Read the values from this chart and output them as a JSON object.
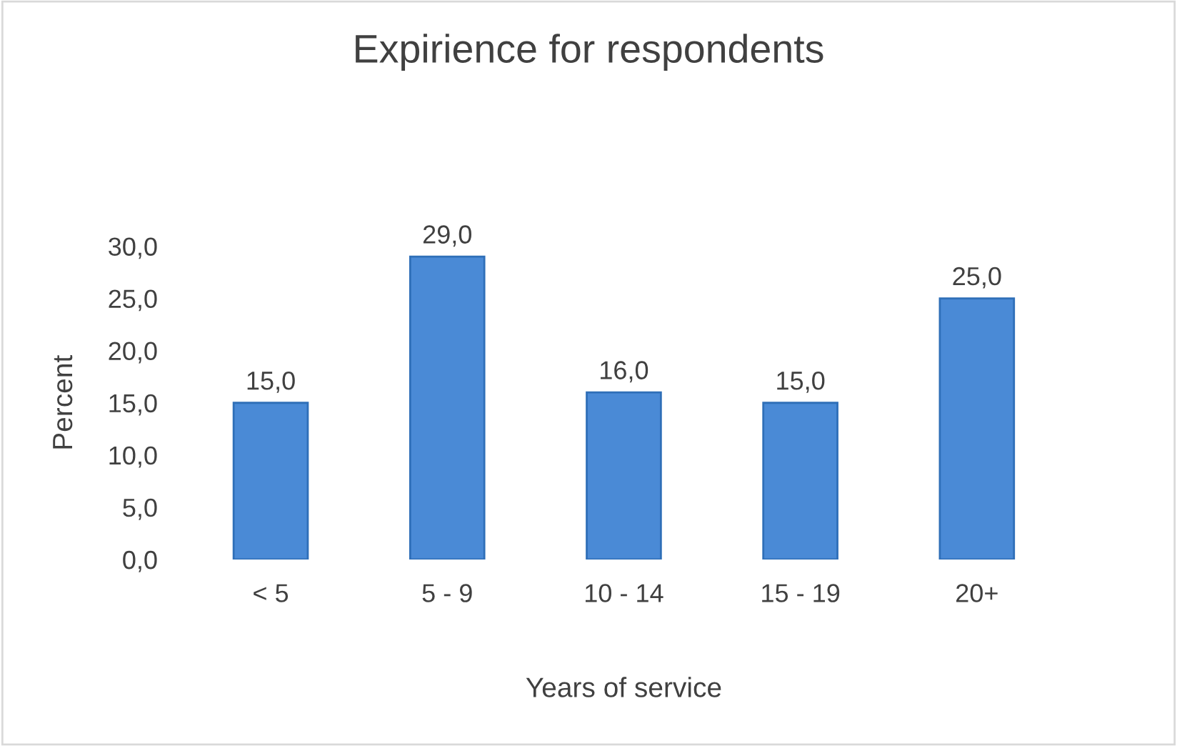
{
  "chart_data": {
    "type": "bar",
    "title": "Expirience for respondents",
    "xlabel": "Years of service",
    "ylabel": "Percent",
    "categories": [
      "< 5",
      "5 - 9",
      "10 - 14",
      "15 - 19",
      "20+"
    ],
    "values": [
      15,
      29,
      16,
      15,
      25
    ],
    "value_labels": [
      "15,0",
      "29,0",
      "16,0",
      "15,0",
      "25,0"
    ],
    "color": "#4a8ad6",
    "ylim": [
      0,
      30
    ],
    "yticks": [
      {
        "value": 0,
        "label": "0,0"
      },
      {
        "value": 5,
        "label": "5,0"
      },
      {
        "value": 10,
        "label": "10,0"
      },
      {
        "value": 15,
        "label": "15,0"
      },
      {
        "value": 20,
        "label": "20,0"
      },
      {
        "value": 25,
        "label": "25,0"
      },
      {
        "value": 30,
        "label": "30,0"
      }
    ],
    "grid": false,
    "legend": false
  }
}
